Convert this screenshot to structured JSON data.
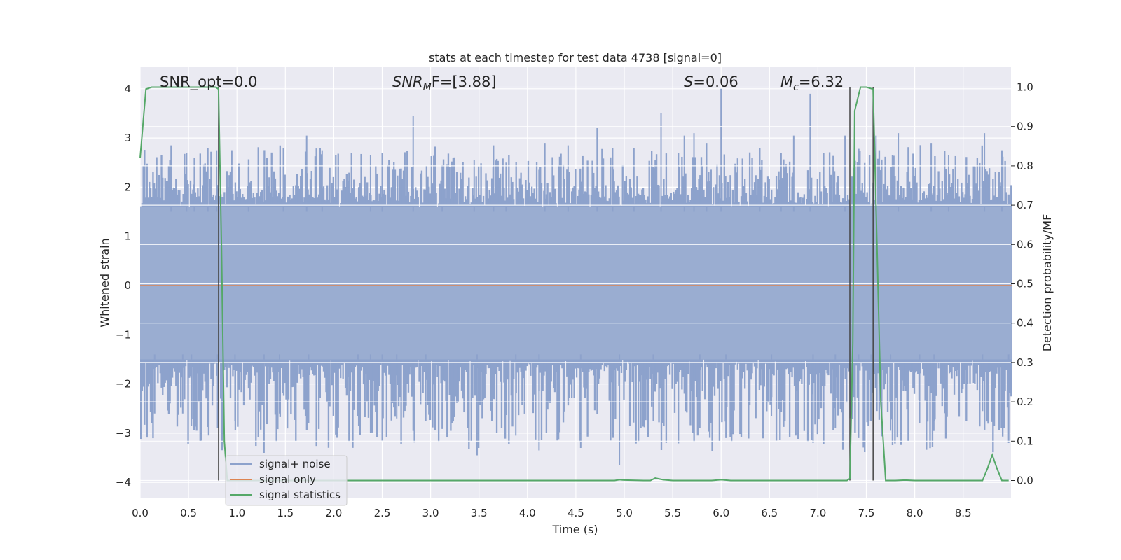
{
  "chart_data": {
    "type": "line",
    "title": "stats at each timestep for test data 4738 [signal=0]",
    "xlabel": "Time (s)",
    "ylabel": "Whitened strain",
    "ylabel_right": "Detection probability/MF",
    "xlim": [
      0.0,
      9.0
    ],
    "ylim": [
      -4.4,
      4.4
    ],
    "ylim_right": [
      -0.05,
      1.05
    ],
    "xticks": [
      "0.0",
      "0.5",
      "1.0",
      "1.5",
      "2.0",
      "2.5",
      "3.0",
      "3.5",
      "4.0",
      "4.5",
      "5.0",
      "5.5",
      "6.0",
      "6.5",
      "7.0",
      "7.5",
      "8.0",
      "8.5"
    ],
    "yticks": [
      "4",
      "3",
      "2",
      "1",
      "0",
      "−1",
      "−2",
      "−3",
      "−4"
    ],
    "yticks_right": [
      "1.0",
      "0.9",
      "0.8",
      "0.7",
      "0.6",
      "0.5",
      "0.4",
      "0.3",
      "0.2",
      "0.1",
      "0.0"
    ],
    "grid": true,
    "background": "#eaeaf2",
    "annotations": {
      "snr_opt": "SNR_opt=0.0",
      "snr_mf_base": "SNR",
      "snr_mf_sub": "M",
      "snr_mf_tail": "F=[3.88]",
      "s_base": "S",
      "s_tail": "=0.06",
      "mc_base": "M",
      "mc_sub": "c",
      "mc_tail": "=6.32"
    },
    "vlines": [
      0.81,
      7.33,
      7.57
    ],
    "series": [
      {
        "name": "signal+ noise",
        "color": "#4c72b0",
        "noise_band": {
          "upper": [
            1.6,
            3.0
          ],
          "lower": [
            -1.5,
            -3.8
          ]
        },
        "peaks_upper": [
          [
            0.32,
            2.85
          ],
          [
            0.48,
            2.7
          ],
          [
            0.56,
            2.6
          ],
          [
            0.7,
            2.8
          ],
          [
            0.79,
            2.75
          ],
          [
            1.12,
            2.4
          ],
          [
            1.48,
            2.8
          ],
          [
            1.72,
            3.05
          ],
          [
            1.88,
            2.75
          ],
          [
            2.38,
            2.65
          ],
          [
            2.5,
            2.7
          ],
          [
            2.82,
            3.45
          ],
          [
            3.12,
            2.45
          ],
          [
            3.45,
            2.55
          ],
          [
            3.65,
            2.85
          ],
          [
            3.78,
            2.5
          ],
          [
            4.18,
            2.9
          ],
          [
            4.42,
            2.85
          ],
          [
            4.72,
            3.2
          ],
          [
            4.88,
            2.8
          ],
          [
            5.1,
            2.8
          ],
          [
            5.38,
            3.5
          ],
          [
            5.62,
            3.05
          ],
          [
            5.72,
            3.1
          ],
          [
            5.85,
            2.9
          ],
          [
            6.0,
            4.0
          ],
          [
            6.4,
            2.8
          ],
          [
            6.62,
            2.7
          ],
          [
            6.75,
            3.05
          ],
          [
            6.92,
            3.9
          ],
          [
            7.28,
            3.05
          ],
          [
            7.6,
            3.05
          ],
          [
            7.83,
            3.1
          ],
          [
            8.17,
            2.9
          ],
          [
            8.35,
            2.65
          ],
          [
            8.72,
            3.1
          ],
          [
            8.9,
            2.75
          ]
        ],
        "peaks_lower": [
          [
            0.15,
            -2.6
          ],
          [
            0.44,
            -2.6
          ],
          [
            0.53,
            -2.85
          ],
          [
            0.8,
            -2.9
          ],
          [
            0.98,
            -2.75
          ],
          [
            1.28,
            -3.4
          ],
          [
            1.44,
            -2.6
          ],
          [
            1.74,
            -2.8
          ],
          [
            2.25,
            -2.65
          ],
          [
            2.38,
            -3.0
          ],
          [
            2.5,
            -3.15
          ],
          [
            2.65,
            -2.7
          ],
          [
            2.95,
            -2.75
          ],
          [
            3.48,
            -3.45
          ],
          [
            3.88,
            -3.05
          ],
          [
            4.12,
            -3.35
          ],
          [
            4.55,
            -3.3
          ],
          [
            4.95,
            -3.65
          ],
          [
            5.3,
            -2.75
          ],
          [
            5.78,
            -2.9
          ],
          [
            6.05,
            -3.1
          ],
          [
            6.52,
            -2.65
          ],
          [
            6.95,
            -3.2
          ],
          [
            7.18,
            -2.9
          ],
          [
            7.42,
            -3.1
          ],
          [
            7.55,
            -2.75
          ],
          [
            7.75,
            -2.95
          ],
          [
            8.05,
            -2.8
          ],
          [
            8.2,
            -2.75
          ],
          [
            8.7,
            -2.55
          ],
          [
            8.97,
            -3.2
          ]
        ]
      },
      {
        "name": "signal only",
        "color": "#dd8452",
        "x": [
          0.0,
          9.0
        ],
        "y": [
          0.0,
          0.0
        ]
      },
      {
        "name": "signal statistics",
        "color": "#55a868",
        "axis": "right",
        "x": [
          0.0,
          0.06,
          0.12,
          0.2,
          0.3,
          0.5,
          0.7,
          0.78,
          0.81,
          0.84,
          0.87,
          0.9,
          0.95,
          1.0,
          1.5,
          2.0,
          3.0,
          4.0,
          4.9,
          4.95,
          5.0,
          5.2,
          5.27,
          5.32,
          5.4,
          5.5,
          5.9,
          6.0,
          6.1,
          7.0,
          7.25,
          7.3,
          7.33,
          7.36,
          7.38,
          7.44,
          7.5,
          7.57,
          7.6,
          7.65,
          7.7,
          7.8,
          7.9,
          8.0,
          8.5,
          8.7,
          8.75,
          8.8,
          8.85,
          8.9,
          8.97
        ],
        "y": [
          0.82,
          0.995,
          1.0,
          1.0,
          1.0,
          1.0,
          1.0,
          1.0,
          0.995,
          0.6,
          0.1,
          0.0,
          0.0,
          0.0,
          0.0,
          0.0,
          0.0,
          0.0,
          0.0,
          0.002,
          0.001,
          0.0,
          0.0,
          0.006,
          0.002,
          0.0,
          0.0,
          0.002,
          0.0,
          0.0,
          0.0,
          0.0,
          0.005,
          0.35,
          0.94,
          1.0,
          1.0,
          0.995,
          0.7,
          0.2,
          0.0,
          0.0,
          0.001,
          0.0,
          0.0,
          0.0,
          0.03,
          0.065,
          0.03,
          0.0,
          0.0
        ]
      }
    ],
    "legend": "lower-left"
  }
}
